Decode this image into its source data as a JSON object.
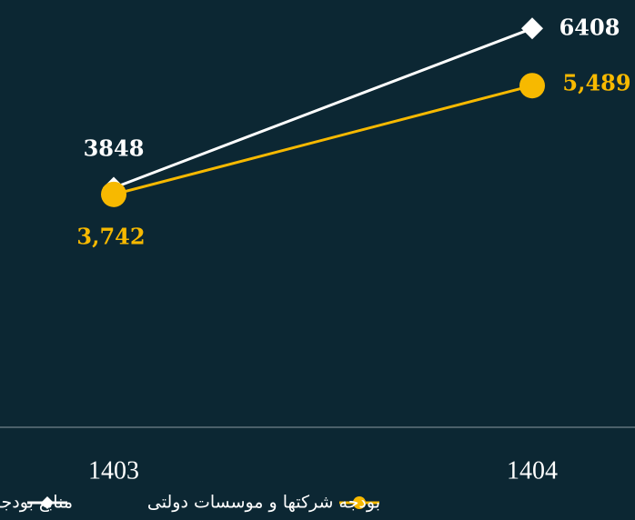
{
  "chart_data": {
    "type": "line",
    "categories": [
      "1403",
      "1404"
    ],
    "series": [
      {
        "name": "منابع بودجه عمومی دولت",
        "color": "#ffffff",
        "marker": "diamond",
        "values": [
          3848,
          6408
        ]
      },
      {
        "name": "بودجه شرکتها و موسسات دولتی",
        "color": "#f7b900",
        "marker": "circle",
        "values": [
          3742,
          5489
        ],
        "value_labels": [
          "3,742",
          "5,489"
        ]
      }
    ],
    "ylim": [
      0,
      6500
    ]
  }
}
